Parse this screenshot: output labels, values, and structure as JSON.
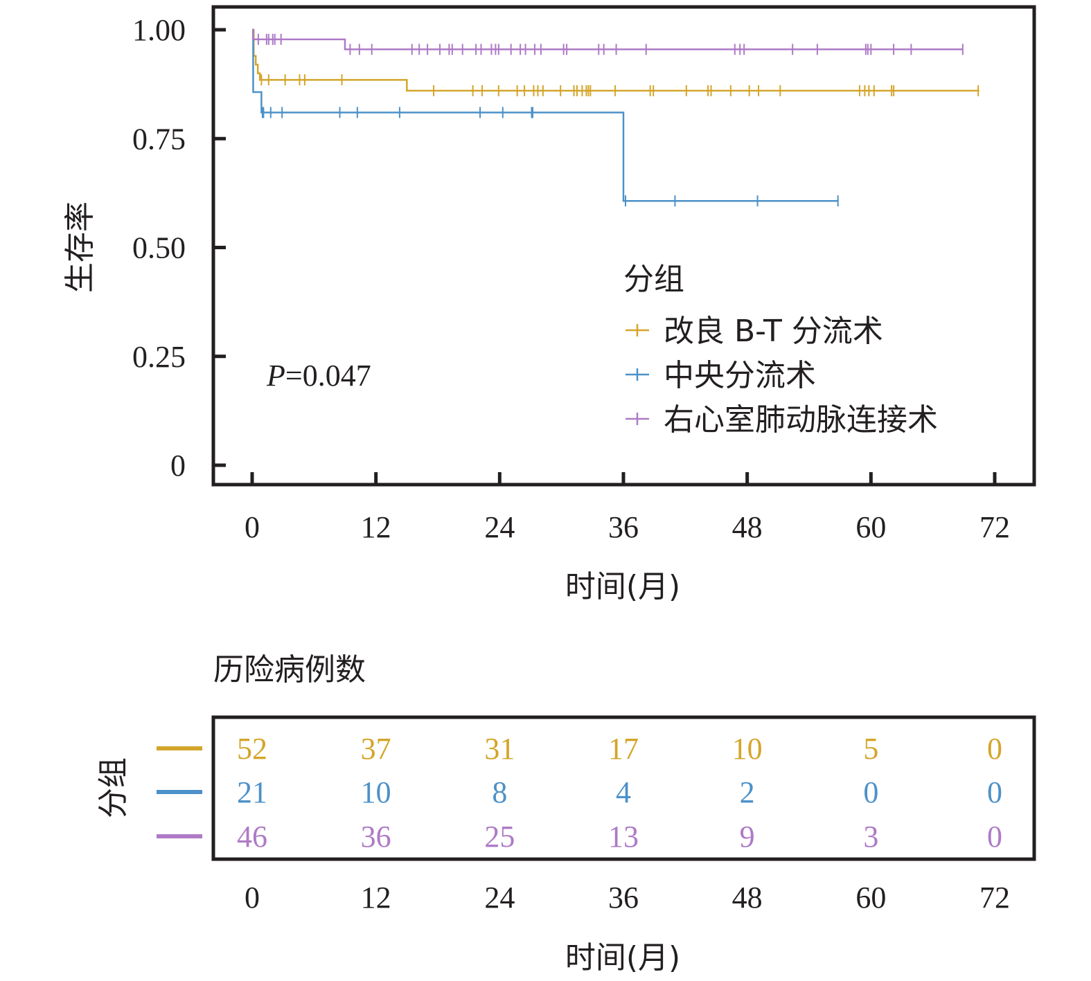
{
  "chart_data": [
    {
      "type": "line",
      "subtype": "kaplan-meier",
      "ylabel": "生存率",
      "xlabel": "时间(月)",
      "xlim": [
        0,
        72
      ],
      "ylim": [
        0,
        1
      ],
      "x_ticks": [
        "0",
        "12",
        "24",
        "36",
        "48",
        "60",
        "72"
      ],
      "y_ticks": [
        "0",
        "0.25",
        "0.50",
        "0.75",
        "1.00"
      ],
      "y_tick_values": [
        0,
        0.25,
        0.5,
        0.75,
        1.0
      ],
      "annotation": {
        "p_label": "P",
        "p_value": "=0.047"
      },
      "legend": {
        "title": "分组",
        "position": "right-center"
      },
      "series": [
        {
          "name": "改良 B-T 分流术",
          "color": "#d4a52a",
          "steps": [
            [
              0,
              1.0
            ],
            [
              0.15,
              0.94
            ],
            [
              0.35,
              0.92
            ],
            [
              0.55,
              0.9
            ],
            [
              0.75,
              0.885
            ],
            [
              15.0,
              0.885
            ],
            [
              15.0,
              0.86
            ],
            [
              70.5,
              0.86
            ]
          ],
          "censored": [
            0.9,
            1.6,
            3.2,
            4.6,
            5.1,
            8.7,
            17.6,
            21.4,
            22.3,
            23.9,
            25.7,
            26.4,
            27.3,
            27.7,
            28.2,
            29.9,
            31.2,
            31.5,
            32.0,
            32.4,
            32.6,
            32.8,
            35.2,
            38.6,
            38.9,
            42.1,
            44.2,
            44.5,
            46.4,
            48.2,
            49.1,
            51.2,
            58.9,
            59.4,
            59.8,
            60.3,
            62.0,
            62.2,
            70.4
          ]
        },
        {
          "name": "中央分流术",
          "color": "#4c91c8",
          "steps": [
            [
              0,
              1.0
            ],
            [
              0.1,
              0.857
            ],
            [
              0.9,
              0.857
            ],
            [
              0.9,
              0.81
            ],
            [
              36.0,
              0.81
            ],
            [
              36.0,
              0.607
            ],
            [
              56.8,
              0.607
            ]
          ],
          "censored": [
            1.0,
            1.1,
            1.8,
            2.9,
            8.5,
            10.2,
            14.3,
            22.1,
            24.3,
            27.1,
            27.2,
            36.2,
            41.0,
            49.0,
            56.8
          ]
        },
        {
          "name": "右心室肺动脉连接术",
          "color": "#ae7ac6",
          "steps": [
            [
              0,
              1.0
            ],
            [
              0.08,
              0.978
            ],
            [
              9.0,
              0.978
            ],
            [
              9.0,
              0.955
            ],
            [
              68.9,
              0.955
            ]
          ],
          "censored": [
            0.6,
            1.4,
            1.6,
            2.0,
            2.2,
            2.8,
            9.5,
            10.4,
            11.6,
            15.5,
            16.2,
            17.0,
            18.2,
            19.1,
            19.4,
            20.4,
            21.7,
            22.2,
            23.2,
            23.6,
            23.9,
            25.1,
            26.0,
            26.5,
            27.4,
            28.0,
            30.2,
            30.5,
            33.6,
            34.1,
            35.3,
            38.2,
            46.8,
            47.3,
            47.7,
            52.4,
            54.8,
            59.5,
            59.7,
            60.0,
            62.2,
            63.9,
            68.9
          ]
        }
      ]
    },
    {
      "type": "table",
      "title": "历险病例数",
      "row_axis_label": "分组",
      "xlabel": "时间(月)",
      "columns": [
        "0",
        "12",
        "24",
        "36",
        "48",
        "60",
        "72"
      ],
      "column_values": [
        0,
        12,
        24,
        36,
        48,
        60,
        72
      ],
      "rows": [
        {
          "color": "#d4a52a",
          "values": [
            "52",
            "37",
            "31",
            "17",
            "10",
            "5",
            "0"
          ]
        },
        {
          "color": "#4c91c8",
          "values": [
            "21",
            "10",
            "8",
            "4",
            "2",
            "0",
            "0"
          ]
        },
        {
          "color": "#ae7ac6",
          "values": [
            "46",
            "36",
            "25",
            "13",
            "9",
            "3",
            "0"
          ]
        }
      ]
    }
  ]
}
